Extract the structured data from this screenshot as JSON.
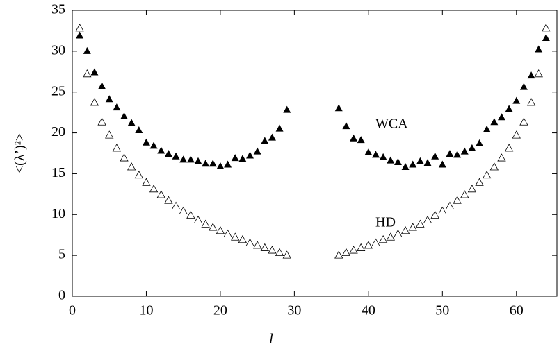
{
  "chart_data": {
    "type": "scatter",
    "xlabel": "l",
    "ylabel": "<(λ’)²>",
    "annotations": [
      "WCA",
      "HD"
    ],
    "xlim": [
      0,
      65
    ],
    "ylim": [
      0,
      35
    ],
    "xticks": [
      0,
      10,
      20,
      30,
      40,
      50,
      60
    ],
    "yticks": [
      0,
      5,
      10,
      15,
      20,
      25,
      30,
      35
    ],
    "series": [
      {
        "name": "WCA",
        "color": "#000000",
        "marker": "filled-triangle",
        "x": [
          1,
          2,
          3,
          4,
          5,
          6,
          7,
          8,
          9,
          10,
          11,
          12,
          13,
          14,
          15,
          16,
          17,
          18,
          19,
          20,
          21,
          22,
          23,
          24,
          25,
          26,
          27,
          28,
          29,
          36,
          37,
          38,
          39,
          40,
          41,
          42,
          43,
          44,
          45,
          46,
          47,
          48,
          49,
          50,
          51,
          52,
          53,
          54,
          55,
          56,
          57,
          58,
          59,
          60,
          61,
          62,
          63,
          64
        ],
        "values": [
          31.9,
          30.0,
          27.4,
          25.7,
          24.1,
          23.1,
          22.0,
          21.2,
          20.3,
          18.8,
          18.4,
          17.8,
          17.4,
          17.1,
          16.7,
          16.7,
          16.5,
          16.2,
          16.2,
          15.9,
          16.1,
          16.9,
          16.8,
          17.2,
          17.7,
          19.0,
          19.4,
          20.5,
          22.8,
          23.0,
          20.8,
          19.3,
          19.1,
          17.6,
          17.3,
          17.0,
          16.6,
          16.4,
          15.8,
          16.1,
          16.5,
          16.3,
          17.1,
          16.1,
          17.4,
          17.3,
          17.7,
          18.1,
          18.7,
          20.4,
          21.3,
          21.9,
          22.9,
          23.9,
          25.6,
          27.0,
          30.2,
          31.6
        ]
      },
      {
        "name": "HD",
        "color": "#000000",
        "marker": "open-triangle",
        "x": [
          1,
          2,
          3,
          4,
          5,
          6,
          7,
          8,
          9,
          10,
          11,
          12,
          13,
          14,
          15,
          16,
          17,
          18,
          19,
          20,
          21,
          22,
          23,
          24,
          25,
          26,
          27,
          28,
          29,
          36,
          37,
          38,
          39,
          40,
          41,
          42,
          43,
          44,
          45,
          46,
          47,
          48,
          49,
          50,
          51,
          52,
          53,
          54,
          55,
          56,
          57,
          58,
          59,
          60,
          61,
          62,
          63,
          64
        ],
        "values": [
          32.8,
          27.2,
          23.7,
          21.3,
          19.7,
          18.1,
          16.9,
          15.8,
          14.8,
          13.9,
          13.1,
          12.4,
          11.7,
          11.0,
          10.4,
          9.9,
          9.3,
          8.8,
          8.4,
          8.0,
          7.6,
          7.2,
          6.9,
          6.5,
          6.2,
          5.9,
          5.6,
          5.3,
          5.0,
          5.0,
          5.3,
          5.6,
          5.9,
          6.2,
          6.5,
          6.9,
          7.2,
          7.6,
          8.0,
          8.4,
          8.8,
          9.3,
          9.9,
          10.4,
          11.0,
          11.7,
          12.4,
          13.1,
          13.9,
          14.8,
          15.8,
          16.9,
          18.1,
          19.7,
          21.3,
          23.7,
          27.2,
          32.8
        ]
      }
    ]
  }
}
